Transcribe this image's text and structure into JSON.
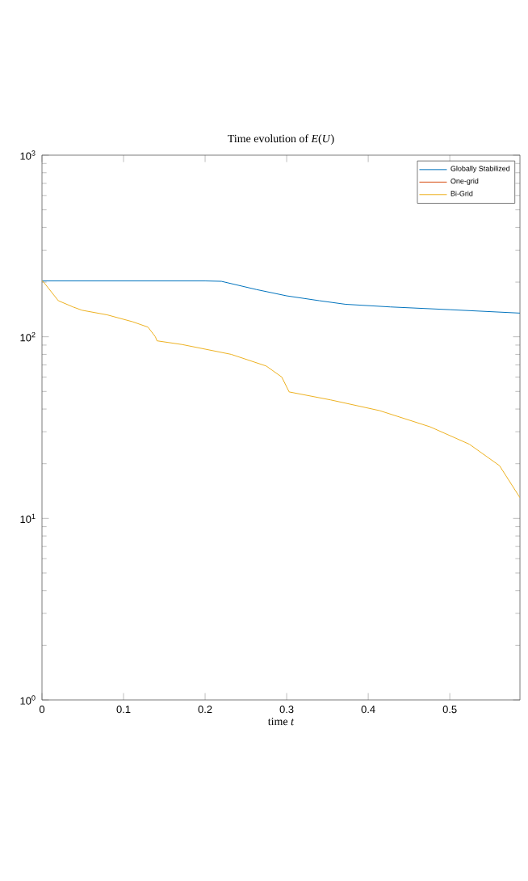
{
  "chart_data": {
    "type": "line",
    "title": "Time evolution of *E*(*U*)",
    "xlabel": "time *t*",
    "xlim": [
      0,
      0.586
    ],
    "ylim": [
      1,
      1000
    ],
    "log": "y",
    "xticks": [
      0,
      0.1,
      0.2,
      0.3,
      0.4,
      0.5
    ],
    "yticks": [
      {
        "value": 1,
        "label": "10$^{0}$"
      },
      {
        "value": 10,
        "label": "10$^{1}$"
      },
      {
        "value": 100,
        "label": "10$^{2}$"
      },
      {
        "value": 1000,
        "label": "10$^{3}$"
      }
    ],
    "grid": false,
    "legend": "top right",
    "series": [
      {
        "name": "Globally Stabilized",
        "color": "#0072bd",
        "x": [
          0,
          0.05,
          0.1,
          0.15,
          0.2,
          0.22,
          0.263,
          0.3,
          0.34,
          0.372,
          0.427,
          0.5,
          0.586
        ],
        "values": [
          203,
          203,
          203,
          203,
          203,
          202,
          182,
          168,
          158,
          151,
          146,
          141,
          135
        ]
      },
      {
        "name": "One-grid",
        "color": "#d95319",
        "values": [
          null
        ]
      },
      {
        "name": "Bi-Grid",
        "color": "#edb120",
        "x": [
          0,
          0.002,
          0.02,
          0.038,
          0.049,
          0.08,
          0.111,
          0.13,
          0.139,
          0.141,
          0.172,
          0.232,
          0.275,
          0.294,
          0.303,
          0.354,
          0.414,
          0.476,
          0.524,
          0.561,
          0.586
        ],
        "values": [
          203,
          200,
          158,
          146,
          140,
          132,
          121,
          113,
          100,
          95,
          90.6,
          80,
          69,
          60,
          49.7,
          44.9,
          39.2,
          31.9,
          25.6,
          19.5,
          13
        ]
      }
    ]
  }
}
